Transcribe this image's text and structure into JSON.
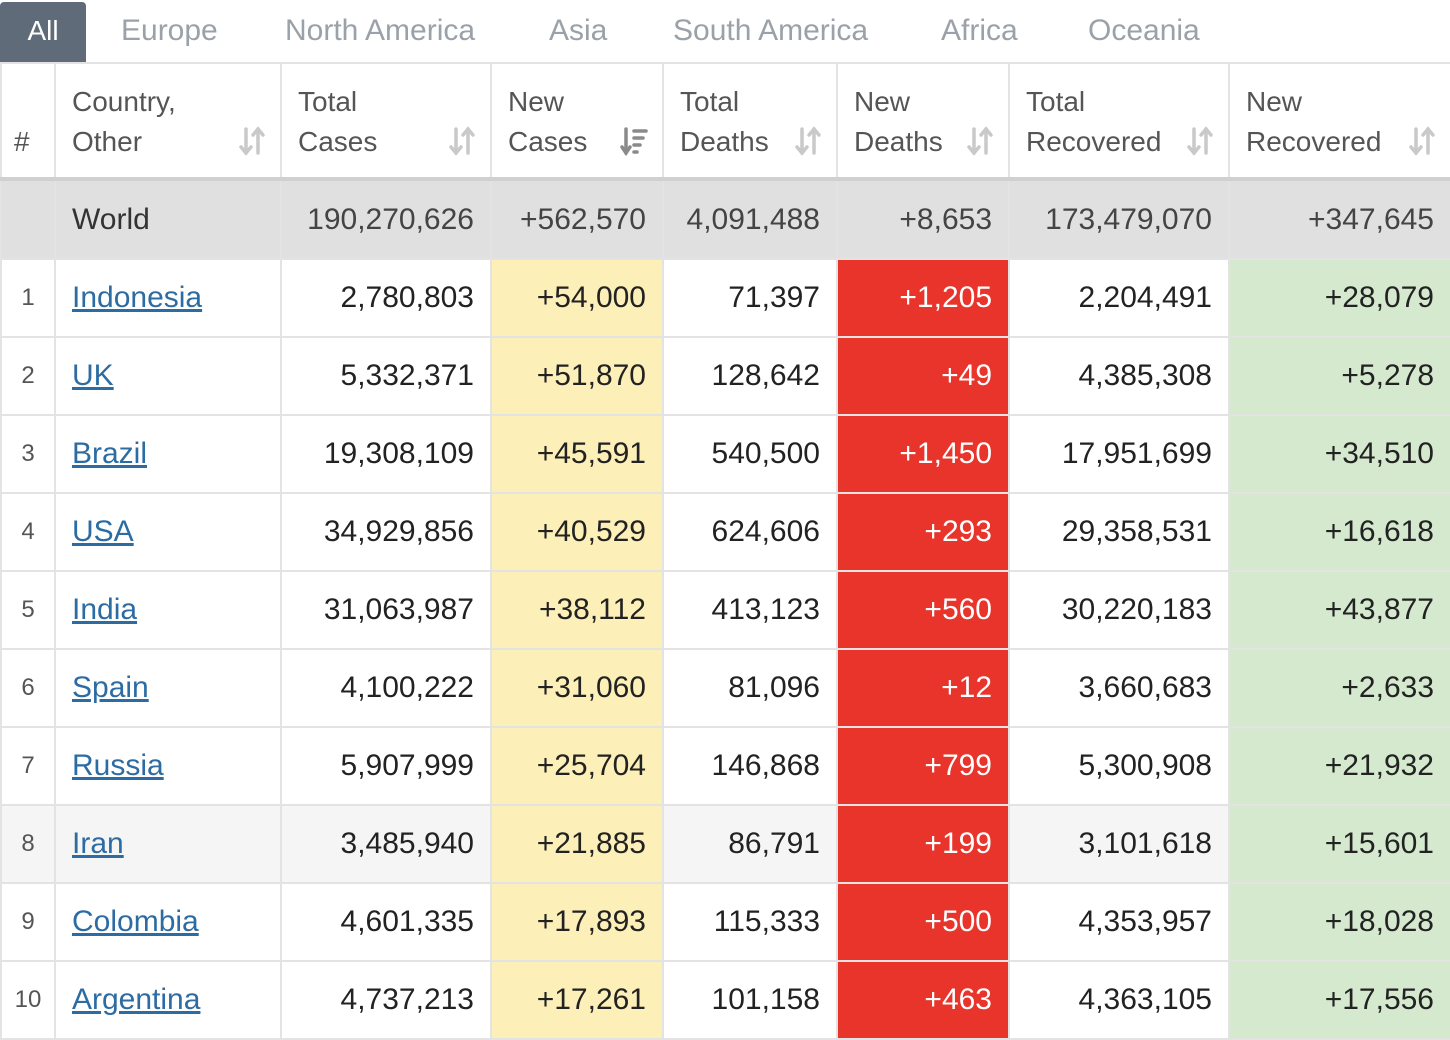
{
  "tabs": [
    "All",
    "Europe",
    "North America",
    "Asia",
    "South America",
    "Africa",
    "Oceania"
  ],
  "headers": {
    "rank": "#",
    "country": [
      "Country,",
      "Other"
    ],
    "total_cases": [
      "Total",
      "Cases"
    ],
    "new_cases": [
      "New",
      "Cases"
    ],
    "total_deaths": [
      "Total",
      "Deaths"
    ],
    "new_deaths": [
      "New",
      "Deaths"
    ],
    "total_recovered": [
      "Total",
      "Recovered"
    ],
    "new_recovered": [
      "New",
      "Recovered"
    ]
  },
  "world": {
    "country": "World",
    "total_cases": "190,270,626",
    "new_cases": "+562,570",
    "total_deaths": "4,091,488",
    "new_deaths": "+8,653",
    "total_recovered": "173,479,070",
    "new_recovered": "+347,645"
  },
  "rows": [
    {
      "rank": "1",
      "country": "Indonesia",
      "total_cases": "2,780,803",
      "new_cases": "+54,000",
      "total_deaths": "71,397",
      "new_deaths": "+1,205",
      "total_recovered": "2,204,491",
      "new_recovered": "+28,079"
    },
    {
      "rank": "2",
      "country": "UK",
      "total_cases": "5,332,371",
      "new_cases": "+51,870",
      "total_deaths": "128,642",
      "new_deaths": "+49",
      "total_recovered": "4,385,308",
      "new_recovered": "+5,278"
    },
    {
      "rank": "3",
      "country": "Brazil",
      "total_cases": "19,308,109",
      "new_cases": "+45,591",
      "total_deaths": "540,500",
      "new_deaths": "+1,450",
      "total_recovered": "17,951,699",
      "new_recovered": "+34,510"
    },
    {
      "rank": "4",
      "country": "USA",
      "total_cases": "34,929,856",
      "new_cases": "+40,529",
      "total_deaths": "624,606",
      "new_deaths": "+293",
      "total_recovered": "29,358,531",
      "new_recovered": "+16,618"
    },
    {
      "rank": "5",
      "country": "India",
      "total_cases": "31,063,987",
      "new_cases": "+38,112",
      "total_deaths": "413,123",
      "new_deaths": "+560",
      "total_recovered": "30,220,183",
      "new_recovered": "+43,877"
    },
    {
      "rank": "6",
      "country": "Spain",
      "total_cases": "4,100,222",
      "new_cases": "+31,060",
      "total_deaths": "81,096",
      "new_deaths": "+12",
      "total_recovered": "3,660,683",
      "new_recovered": "+2,633"
    },
    {
      "rank": "7",
      "country": "Russia",
      "total_cases": "5,907,999",
      "new_cases": "+25,704",
      "total_deaths": "146,868",
      "new_deaths": "+799",
      "total_recovered": "5,300,908",
      "new_recovered": "+21,932"
    },
    {
      "rank": "8",
      "country": "Iran",
      "total_cases": "3,485,940",
      "new_cases": "+21,885",
      "total_deaths": "86,791",
      "new_deaths": "+199",
      "total_recovered": "3,101,618",
      "new_recovered": "+15,601"
    },
    {
      "rank": "9",
      "country": "Colombia",
      "total_cases": "4,601,335",
      "new_cases": "+17,893",
      "total_deaths": "115,333",
      "new_deaths": "+500",
      "total_recovered": "4,353,957",
      "new_recovered": "+18,028"
    },
    {
      "rank": "10",
      "country": "Argentina",
      "total_cases": "4,737,213",
      "new_cases": "+17,261",
      "total_deaths": "101,158",
      "new_deaths": "+463",
      "total_recovered": "4,363,105",
      "new_recovered": "+17,556"
    }
  ],
  "colors": {
    "new_cases_highlight": "#fcefb8",
    "new_deaths_highlight": "#e8342a",
    "new_recovered_highlight": "#d5e9cf",
    "active_tab": "#5f6b78",
    "link": "#2c6ca3"
  },
  "icons": {
    "sort": "sort-arrows-icon",
    "sort_active": "sort-desc-icon"
  }
}
